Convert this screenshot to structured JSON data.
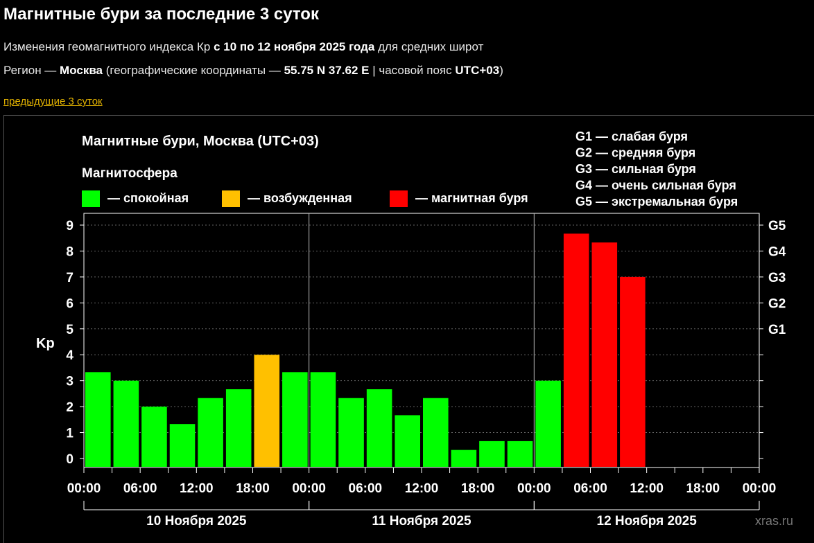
{
  "header": {
    "title": "Магнитные бури за последние 3 суток",
    "line1": {
      "pre": "Изменения геомагнитного индекса Кр ",
      "bold": "с 10 по 12 ноября 2025 года",
      "post": " для средних широт"
    },
    "line2": {
      "pre": "Регион — ",
      "region": "Москва",
      "mid": " (географические координаты — ",
      "coords": "55.75 N 37.62 E",
      "mid2": " | часовой пояс ",
      "tz": "UTC+03",
      "post": ")"
    },
    "prev_link": "предыдущие 3 суток"
  },
  "chart_data": {
    "type": "bar",
    "title": "Магнитные бури, Москва (UTC+03)",
    "legend_title": "Магнитосфера",
    "legend": [
      {
        "label": "— спокойная",
        "color": "#00ff00"
      },
      {
        "label": "— возбужденная",
        "color": "#ffc000"
      },
      {
        "label": "— магнитная буря",
        "color": "#ff0000"
      }
    ],
    "g_legend": [
      "G1 — слабая буря",
      "G2 — средняя буря",
      "G3 — сильная буря",
      "G4 — очень сильная буря",
      "G5 — экстремальная буря"
    ],
    "ylabel": "Kp",
    "ylim": [
      0,
      9
    ],
    "yticks": [
      "0",
      "1",
      "2",
      "3",
      "4",
      "5",
      "6",
      "7",
      "8",
      "9"
    ],
    "g_ticks": [
      {
        "label": "G1",
        "value": 5
      },
      {
        "label": "G2",
        "value": 6
      },
      {
        "label": "G3",
        "value": 7
      },
      {
        "label": "G4",
        "value": 8
      },
      {
        "label": "G5",
        "value": 9
      }
    ],
    "xtick_labels": [
      "00:00",
      "06:00",
      "12:00",
      "18:00",
      "00:00",
      "06:00",
      "12:00",
      "18:00",
      "00:00",
      "06:00",
      "12:00",
      "18:00",
      "00:00"
    ],
    "days": [
      "10 Ноября 2025",
      "11 Ноября 2025",
      "12 Ноября 2025"
    ],
    "slots": [
      "00:00",
      "03:00",
      "06:00",
      "09:00",
      "12:00",
      "15:00",
      "18:00",
      "21:00"
    ],
    "values": [
      [
        3.33,
        3.0,
        2.0,
        1.33,
        2.33,
        2.67,
        4.0,
        3.33
      ],
      [
        3.33,
        2.33,
        2.67,
        1.67,
        2.33,
        0.33,
        0.67,
        0.67
      ],
      [
        3.0,
        8.67,
        8.33,
        7.0,
        null,
        null,
        null,
        null
      ]
    ],
    "colors": [
      [
        "#00ff00",
        "#00ff00",
        "#00ff00",
        "#00ff00",
        "#00ff00",
        "#00ff00",
        "#ffc000",
        "#00ff00"
      ],
      [
        "#00ff00",
        "#00ff00",
        "#00ff00",
        "#00ff00",
        "#00ff00",
        "#00ff00",
        "#00ff00",
        "#00ff00"
      ],
      [
        "#00ff00",
        "#ff0000",
        "#ff0000",
        "#ff0000",
        null,
        null,
        null,
        null
      ]
    ],
    "grid": true,
    "watermark": "xras.ru"
  }
}
